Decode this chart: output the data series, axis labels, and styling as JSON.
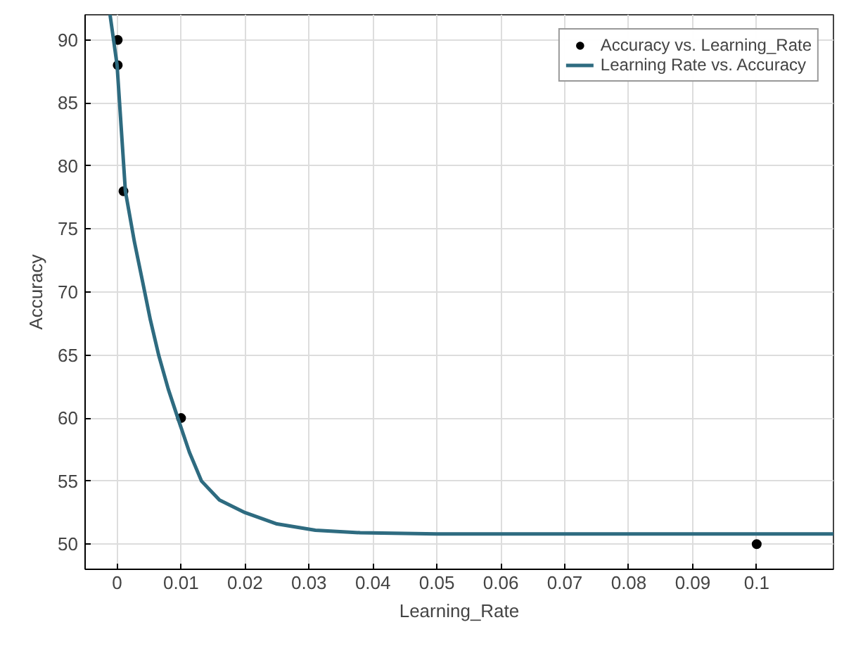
{
  "chart_data": {
    "type": "scatter",
    "xlabel": "Learning_Rate",
    "ylabel": "Accuracy",
    "xlim": [
      -0.005,
      0.112
    ],
    "ylim": [
      48,
      92
    ],
    "xticks": [
      0,
      0.01,
      0.02,
      0.03,
      0.04,
      0.05,
      0.06,
      0.07,
      0.08,
      0.09,
      0.1
    ],
    "yticks": [
      50,
      55,
      60,
      65,
      70,
      75,
      80,
      85,
      90
    ],
    "grid": true,
    "legend": "top right",
    "series": [
      {
        "name": "Accuracy vs. Learning_Rate",
        "marker": "circle",
        "color": "#000000",
        "x": [
          0.0001,
          0.0001,
          0.001,
          0.01,
          0.1
        ],
        "values": [
          90,
          88,
          78,
          60,
          50
        ]
      },
      {
        "name": "Learning Rate vs. Accuracy",
        "type": "line",
        "color": "#2e6b80",
        "x": [
          -0.0011,
          0,
          0.0013,
          0.0027,
          0.004,
          0.0052,
          0.0065,
          0.008,
          0.0095,
          0.0113,
          0.0132,
          0.016,
          0.02,
          0.025,
          0.031,
          0.038,
          0.05,
          0.07,
          0.112
        ],
        "values": [
          92,
          88,
          78,
          74,
          70.8,
          67.8,
          65,
          62.3,
          60,
          57.3,
          55,
          53.5,
          52.5,
          51.6,
          51.1,
          50.9,
          50.8,
          50.8,
          50.8
        ]
      }
    ]
  }
}
